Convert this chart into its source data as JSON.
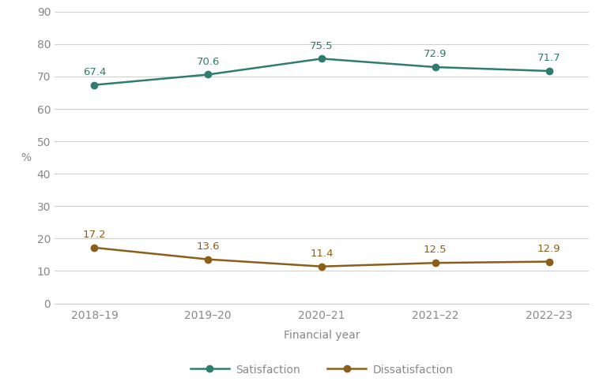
{
  "years": [
    "2018–19",
    "2019–20",
    "2020–21",
    "2021–22",
    "2022–23"
  ],
  "satisfaction": [
    67.4,
    70.6,
    75.5,
    72.9,
    71.7
  ],
  "dissatisfaction": [
    17.2,
    13.6,
    11.4,
    12.5,
    12.9
  ],
  "satisfaction_color": "#2e7d6e",
  "dissatisfaction_color": "#8b5e1a",
  "ylim": [
    0,
    90
  ],
  "yticks": [
    0,
    10,
    20,
    30,
    40,
    50,
    60,
    70,
    80,
    90
  ],
  "ylabel": "%",
  "xlabel": "Financial year",
  "legend_satisfaction": "Satisfaction",
  "legend_dissatisfaction": "Dissatisfaction",
  "background_color": "#ffffff",
  "grid_color": "#d0d0d0",
  "tick_fontsize": 10,
  "xlabel_fontsize": 10,
  "ylabel_fontsize": 10,
  "legend_fontsize": 10,
  "annotation_fontsize": 9.5,
  "line_width": 1.8,
  "marker": "o",
  "marker_size": 6
}
